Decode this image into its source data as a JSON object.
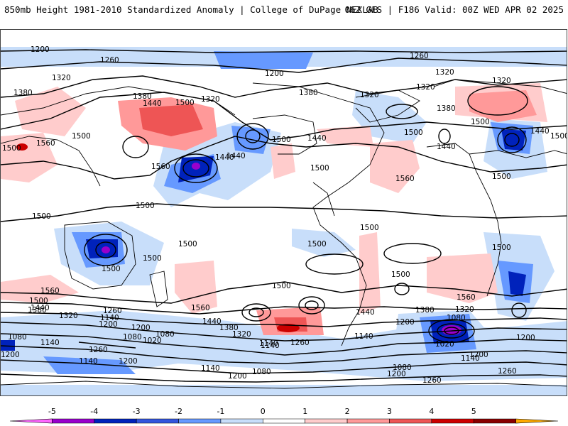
{
  "header": {
    "title": "850mb Height 1981-2010 Standardized Anomaly | College of DuPage NEXLAB",
    "run_info": "06Z GFS | F186 Valid: 00Z WED APR 02 2025"
  },
  "colorbar": {
    "ticks": [
      "-5",
      "-4",
      "-3",
      "-2",
      "-1",
      "0",
      "1",
      "2",
      "3",
      "4",
      "5"
    ],
    "colors": [
      "#ff66ff",
      "#9900cc",
      "#0022bb",
      "#3355dd",
      "#6699ff",
      "#c8defa",
      "#ffffff",
      "#ffcccc",
      "#ff9999",
      "#ee5555",
      "#cc0000",
      "#880000",
      "#ffaa00"
    ]
  },
  "contour_labels": [
    "1200",
    "1260",
    "1200",
    "1260",
    "1320",
    "1320",
    "1320",
    "1380",
    "1380",
    "1440",
    "1500",
    "1320",
    "1380",
    "1320",
    "1380",
    "1320",
    "1440",
    "1500",
    "1500",
    "1560",
    "1500",
    "1440",
    "1500",
    "1440",
    "1440",
    "1500",
    "1500",
    "1560",
    "1560",
    "1500",
    "1500",
    "1500",
    "1500",
    "1500",
    "1500",
    "1500",
    "1560",
    "1500",
    "1500",
    "1500",
    "1500",
    "1500",
    "1560",
    "1500",
    "1440",
    "1380",
    "1320",
    "1260",
    "1140",
    "1200",
    "1260",
    "1080",
    "1440",
    "1380",
    "1320",
    "1200",
    "1140",
    "1080",
    "1020",
    "1080",
    "1140",
    "1260",
    "1200",
    "1140",
    "1200",
    "1380",
    "1320",
    "1200",
    "1080",
    "1140",
    "1200",
    "1260",
    "1020",
    "1080",
    "1140",
    "1200",
    "1260",
    "1140",
    "1200",
    "1080",
    "1140",
    "1200",
    "1560",
    "1440",
    "1440"
  ],
  "anomaly_colors": {
    "neg1": "#c8defa",
    "neg2": "#6699ff",
    "neg3": "#3355dd",
    "neg4": "#0022bb",
    "neg5": "#9900cc",
    "pos1": "#ffcccc",
    "pos2": "#ff9999",
    "pos3": "#ee5555",
    "pos4": "#cc0000"
  }
}
